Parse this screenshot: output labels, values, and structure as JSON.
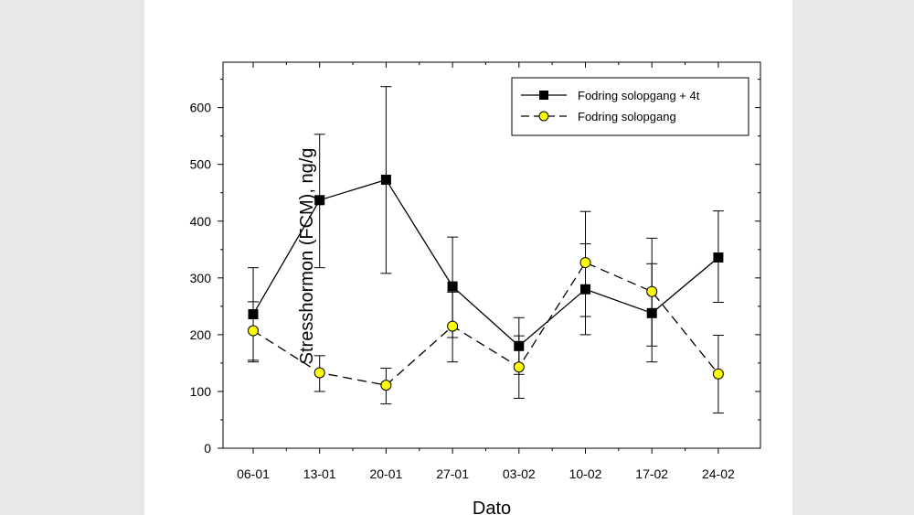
{
  "chart_data": {
    "type": "line",
    "title": "",
    "xlabel": "Dato",
    "ylabel": "Stresshormon (FCM), ng/g",
    "categories": [
      "06-01",
      "13-01",
      "20-01",
      "27-01",
      "03-02",
      "10-02",
      "17-02",
      "24-02"
    ],
    "ylim": [
      0,
      680
    ],
    "yticks": [
      0,
      100,
      200,
      300,
      400,
      500,
      600
    ],
    "grid": false,
    "legend_position": "top-right",
    "series": [
      {
        "name": "Fodring solopgang + 4t",
        "marker": "square",
        "line": "solid",
        "color": "#000000",
        "values": [
          236,
          437,
          473,
          285,
          180,
          280,
          238,
          336
        ],
        "err_low": [
          155,
          318,
          308,
          195,
          130,
          200,
          180,
          257
        ],
        "err_high": [
          318,
          553,
          637,
          372,
          230,
          360,
          370,
          418
        ]
      },
      {
        "name": "Fodring solopgang",
        "marker": "circle",
        "line": "dashed",
        "color": "#ffff00",
        "values": [
          207,
          133,
          111,
          215,
          143,
          327,
          276,
          131
        ],
        "err_low": [
          152,
          100,
          78,
          152,
          88,
          232,
          152,
          62
        ],
        "err_high": [
          258,
          163,
          141,
          275,
          198,
          417,
          325,
          199
        ]
      }
    ]
  }
}
